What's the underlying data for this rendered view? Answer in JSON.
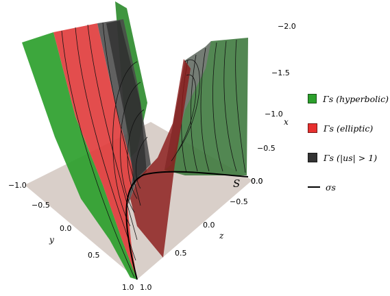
{
  "axes": {
    "x": {
      "label": "x",
      "ticks": [
        "−2.0",
        "−1.5",
        "−1.0",
        "−0.5",
        "0.0"
      ]
    },
    "y": {
      "label": "y",
      "ticks": [
        "−1.0",
        "−0.5",
        "0.0",
        "0.5",
        "1.0"
      ]
    },
    "z": {
      "label": "z",
      "ticks": [
        "−0.5",
        "0.0",
        "0.5",
        "1.0"
      ]
    },
    "extra_tick": "0.0"
  },
  "curve_label": "S",
  "legend": {
    "items": [
      {
        "label": "Γs (hyperbolic)",
        "color": "#2ca02c"
      },
      {
        "label": "Γs (elliptic)",
        "color": "#e8302f"
      },
      {
        "label": "Γs (|us| > 1)",
        "color": "#333333"
      },
      {
        "label": "σs",
        "color": "#000000"
      }
    ]
  },
  "colors": {
    "floor": "#d7ccc6",
    "green_surface": "#2ca02c",
    "red_surface": "#e03a3a",
    "dark_surface": "#3a3a3a",
    "dark_red_surface": "#8b1a1a",
    "back_green_surface": "#3f7a3f"
  }
}
